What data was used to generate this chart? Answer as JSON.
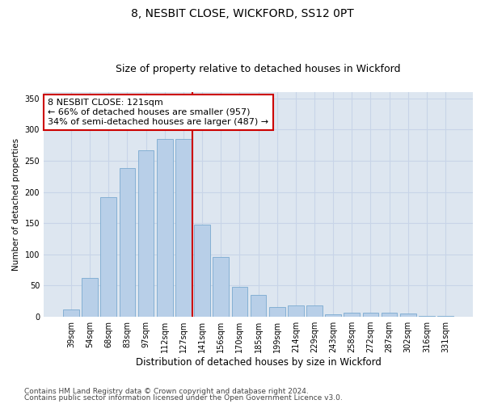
{
  "title": "8, NESBIT CLOSE, WICKFORD, SS12 0PT",
  "subtitle": "Size of property relative to detached houses in Wickford",
  "xlabel": "Distribution of detached houses by size in Wickford",
  "ylabel": "Number of detached properties",
  "categories": [
    "39sqm",
    "54sqm",
    "68sqm",
    "83sqm",
    "97sqm",
    "112sqm",
    "127sqm",
    "141sqm",
    "156sqm",
    "170sqm",
    "185sqm",
    "199sqm",
    "214sqm",
    "229sqm",
    "243sqm",
    "258sqm",
    "272sqm",
    "287sqm",
    "302sqm",
    "316sqm",
    "331sqm"
  ],
  "values": [
    12,
    62,
    192,
    238,
    267,
    285,
    285,
    148,
    96,
    48,
    35,
    16,
    18,
    18,
    4,
    7,
    7,
    6,
    5,
    2,
    2
  ],
  "bar_color": "#b8cfe8",
  "bar_edge_color": "#7aaad0",
  "vline_bar_index": 6,
  "vline_color": "#cc0000",
  "annotation_line1": "8 NESBIT CLOSE: 121sqm",
  "annotation_line2": "← 66% of detached houses are smaller (957)",
  "annotation_line3": "34% of semi-detached houses are larger (487) →",
  "annotation_box_color": "#ffffff",
  "annotation_box_edge_color": "#cc0000",
  "ylim": [
    0,
    360
  ],
  "yticks": [
    0,
    50,
    100,
    150,
    200,
    250,
    300,
    350
  ],
  "grid_color": "#c8d4e8",
  "background_color": "#dde6f0",
  "footer_line1": "Contains HM Land Registry data © Crown copyright and database right 2024.",
  "footer_line2": "Contains public sector information licensed under the Open Government Licence v3.0.",
  "title_fontsize": 10,
  "subtitle_fontsize": 9,
  "xlabel_fontsize": 8.5,
  "ylabel_fontsize": 7.5,
  "tick_fontsize": 7,
  "annotation_fontsize": 8,
  "footer_fontsize": 6.5
}
